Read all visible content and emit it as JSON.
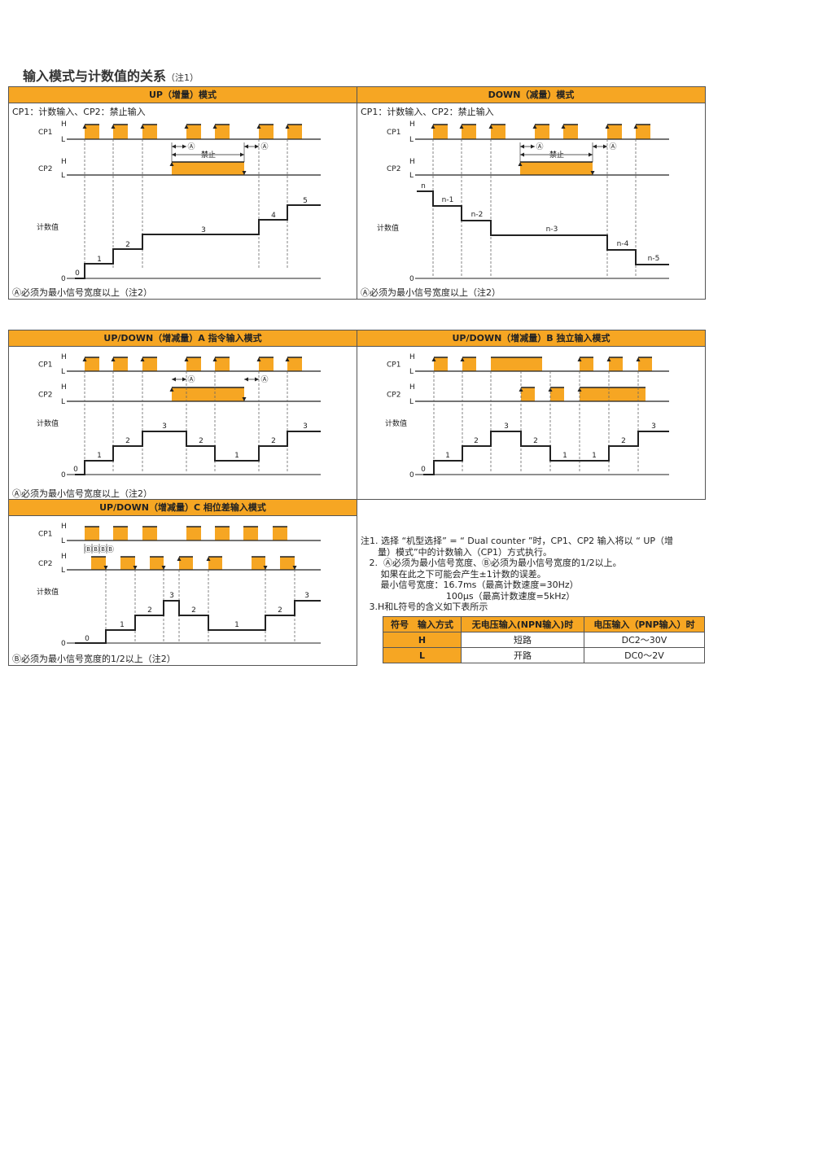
{
  "title": "输入模式与计数值的关系",
  "title_note": "（注1）",
  "colors": {
    "accent": "#f6a623",
    "line": "#222222"
  },
  "signal_labels": {
    "cp1": "CP1",
    "cp2": "CP2",
    "h": "H",
    "l": "L",
    "count": "计数值",
    "zero": "0"
  },
  "panels": [
    {
      "title": "UP（增量）模式",
      "subtitle": "CP1：计数输入、CP2：禁止输入",
      "footnote": "Ⓐ必须为最小信号宽度以上（注2）",
      "inhibit": "禁止",
      "mark": "Ⓐ",
      "count_labels": [
        "0",
        "1",
        "2",
        "3",
        "4",
        "5"
      ]
    },
    {
      "title": "DOWN（减量）模式",
      "subtitle": "CP1：计数输入、CP2：禁止输入",
      "footnote": "Ⓐ必须为最小信号宽度以上（注2）",
      "inhibit": "禁止",
      "mark": "Ⓐ",
      "count_labels": [
        "n",
        "n-1",
        "n-2",
        "n-3",
        "n-4",
        "n-5"
      ]
    },
    {
      "title": "UP/DOWN（增减量）A 指令输入模式",
      "footnote": "Ⓐ必须为最小信号宽度以上（注2）",
      "mark": "Ⓐ",
      "count_labels": [
        "0",
        "1",
        "2",
        "3",
        "2",
        "1",
        "2",
        "3"
      ]
    },
    {
      "title": "UP/DOWN（增减量）B 独立输入模式",
      "count_labels": [
        "0",
        "1",
        "2",
        "3",
        "2",
        "1",
        "1",
        "2",
        "3"
      ]
    },
    {
      "title": "UP/DOWN（增减量）C 相位差输入模式",
      "footnote": "Ⓑ必须为最小信号宽度的1/2以上（注2）",
      "mark": "Ⓑ",
      "count_labels": [
        "0",
        "1",
        "2",
        "3",
        "2",
        "1",
        "2",
        "3"
      ]
    }
  ],
  "notes": {
    "n1": "注1. 选择 “机型选择” = “ Dual counter ”时，CP1、CP2 输入将以 “ UP（增\n      量）模式”中的计数输入（CP1）方式执行。",
    "n2": "   2.  Ⓐ必须为最小信号宽度、Ⓑ必须为最小信号宽度的1/2以上。\n       如果在此之下可能会产生±1计数的误差。\n       最小信号宽度：16.7ms（最高计数速度=30Hz）\n                              100μs（最高计数速度=5kHz）",
    "n3": "   3.H和L符号的含义如下表所示"
  },
  "table": {
    "headers": [
      "符号　输入方式",
      "无电压输入(NPN输入)时",
      "电压输入（PNP输入）时"
    ],
    "rows": [
      [
        "H",
        "短路",
        "DC2～30V"
      ],
      [
        "L",
        "开路",
        "DC0～2V"
      ]
    ]
  }
}
